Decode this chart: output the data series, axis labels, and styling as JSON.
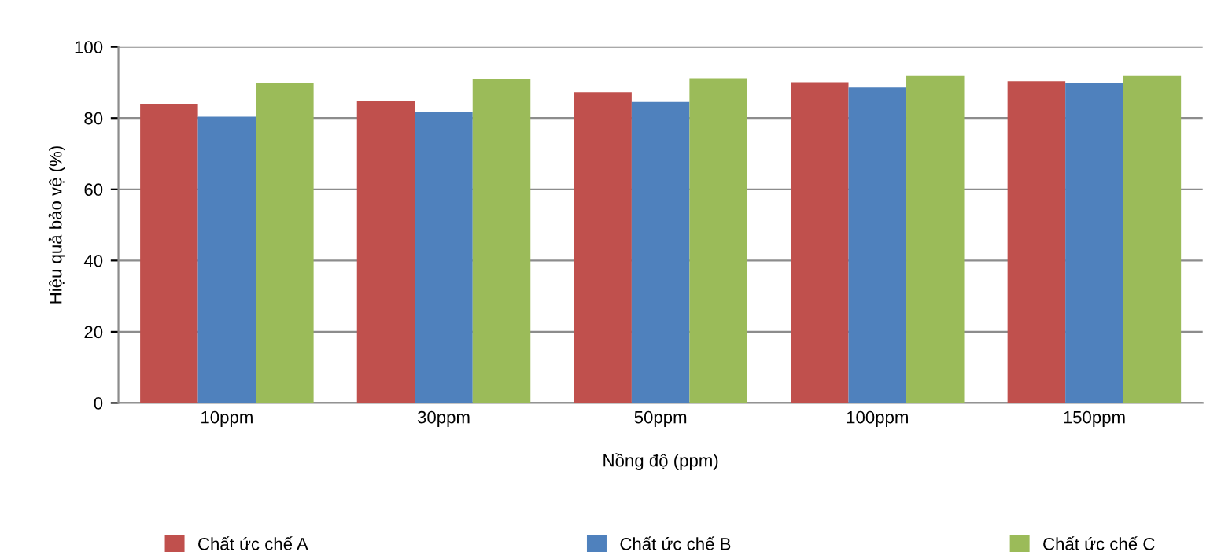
{
  "chart_data": {
    "type": "bar",
    "xlabel": "Nồng độ (ppm)",
    "ylabel": "Hiệu quả bảo vệ (%)",
    "categories": [
      "10ppm",
      "30ppm",
      "50ppm",
      "100ppm",
      "150ppm"
    ],
    "series": [
      {
        "name": "Chất ức chế A",
        "color": "#c0504d",
        "values": [
          84.0,
          84.9,
          87.3,
          90.1,
          90.4
        ]
      },
      {
        "name": "Chất ức chế B",
        "color": "#4f81bd",
        "values": [
          80.4,
          81.8,
          84.5,
          88.6,
          90.0
        ]
      },
      {
        "name": "Chất ức chế C",
        "color": "#9bbb59",
        "values": [
          90.0,
          90.9,
          91.2,
          91.8,
          91.8
        ]
      }
    ],
    "ylim": [
      0,
      100
    ],
    "yticks": [
      0,
      20,
      40,
      60,
      80,
      100
    ],
    "grid": "y",
    "legend": "bottom"
  }
}
